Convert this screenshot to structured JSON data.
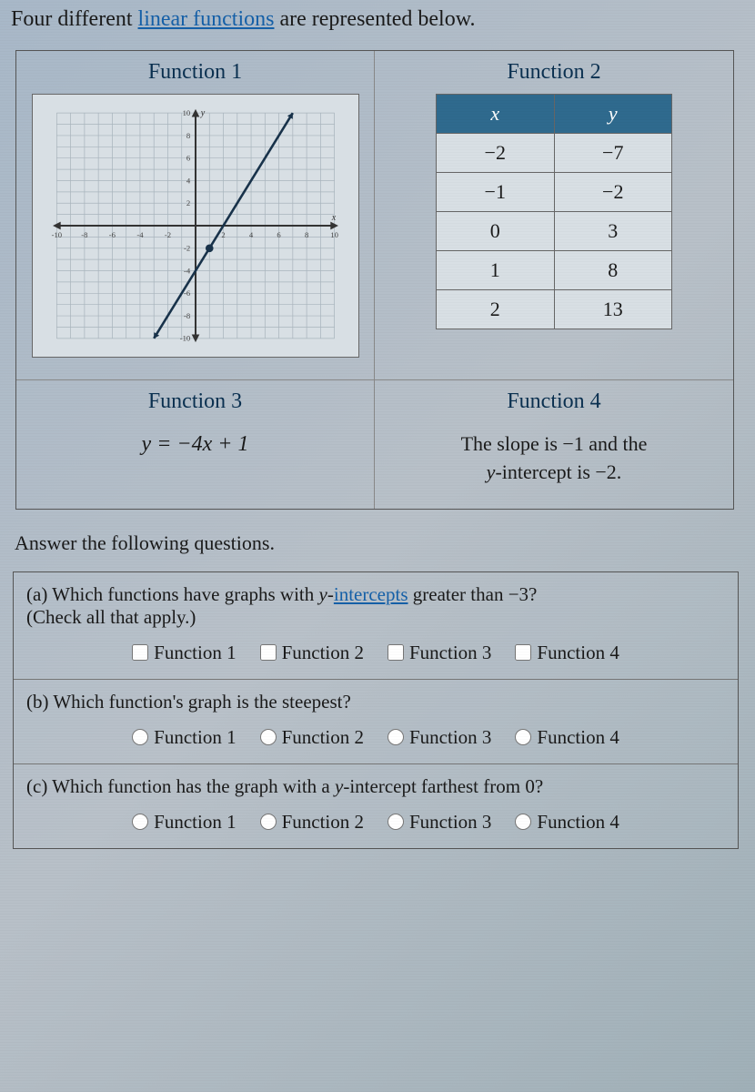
{
  "intro": {
    "prefix": "Four different ",
    "link": "linear functions",
    "suffix": " are represented below."
  },
  "functions": {
    "f1": {
      "title": "Function 1"
    },
    "f2": {
      "title": "Function 2",
      "headers": {
        "x": "x",
        "y": "y"
      },
      "rows": [
        {
          "x": "−2",
          "y": "−7"
        },
        {
          "x": "−1",
          "y": "−2"
        },
        {
          "x": "0",
          "y": "3"
        },
        {
          "x": "1",
          "y": "8"
        },
        {
          "x": "2",
          "y": "13"
        }
      ]
    },
    "f3": {
      "title": "Function 3",
      "equation": "y = −4x + 1"
    },
    "f4": {
      "title": "Function 4",
      "desc1": "The slope is −1 and the",
      "desc2": "y-intercept is −2."
    }
  },
  "chart": {
    "xlim": [
      -10,
      10
    ],
    "ylim": [
      -10,
      10
    ],
    "grid_step": 1,
    "tick_step": 2,
    "grid_color": "#a8b4bc",
    "axis_color": "#333333",
    "line_color": "#18324a",
    "point_color": "#18324a",
    "bg_color": "#d8dfe4",
    "line_points": [
      [
        -3,
        -10
      ],
      [
        7,
        10
      ]
    ],
    "marked_point": [
      1,
      -2
    ]
  },
  "answer_intro": "Answer the following questions.",
  "questions": {
    "a": {
      "text_pre": "(a) Which functions have graphs with ",
      "link": "y-intercepts",
      "text_post": " greater than −3?",
      "hint": "(Check all that apply.)",
      "type": "checkbox"
    },
    "b": {
      "text": "(b) Which function's graph is the steepest?",
      "type": "radio"
    },
    "c": {
      "text": "(c) Which function has the graph with a y-intercept farthest from 0?",
      "type": "radio"
    },
    "options": [
      "Function 1",
      "Function 2",
      "Function 3",
      "Function 4"
    ]
  }
}
